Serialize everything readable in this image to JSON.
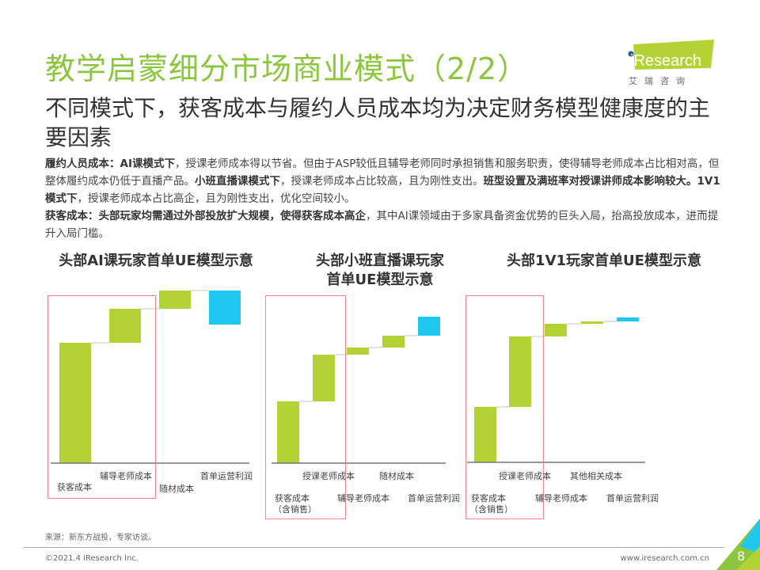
{
  "header": {
    "title": "教学启蒙细分市场商业模式（2/2）",
    "subtitle": "不同模式下，获客成本与履约人员成本均为决定财务模型健康度的主要因素",
    "logo": {
      "brand": "iResearch",
      "cn": "艾 瑞 咨 询"
    }
  },
  "body": {
    "p1": [
      {
        "t": "履约人员成本：AI课模式下",
        "b": true
      },
      {
        "t": "，授课老师成本得以节省。但由于ASP较低且辅导老师同时承担销售和服务职责，使得辅导老师成本占比相对高，但整体履约成本仍低于直播产品。",
        "b": false
      },
      {
        "t": "小班直播课模式下",
        "b": true
      },
      {
        "t": "，授课老师成本占比较高，且为刚性支出。",
        "b": false
      },
      {
        "t": "班型设置及满班率对授课讲师成本影响较大。1V1模式下",
        "b": true
      },
      {
        "t": "，授课老师成本占比高企，且为刚性支出，优化空间较小。",
        "b": false
      }
    ],
    "p2": [
      {
        "t": "获客成本：头部玩家均需通过外部投放扩大规模，使得获客成本高企",
        "b": true
      },
      {
        "t": "，其中AI课领域由于多家具备资金优势的巨头入局，抬高投放成本，进而提升入局门槛。",
        "b": false
      }
    ]
  },
  "colors": {
    "title": "#8cc63f",
    "cost_bar": "#b3d334",
    "profit_bar": "#1fc8f0",
    "highlight_box": "#f0868b"
  },
  "chart_data": [
    {
      "type": "waterfall",
      "title": "头部AI课玩家首单UE模型示意",
      "categories": [
        "获客成本",
        "辅导老师成本",
        "随材成本",
        "首单运营利润"
      ],
      "values": [
        152,
        43,
        23,
        -43
      ],
      "total_bar_last": true,
      "highlighted": [
        "获客成本",
        "辅导老师成本"
      ]
    },
    {
      "type": "waterfall",
      "title": "头部小班直播课玩家",
      "title2": "首单UE模型示意",
      "categories": [
        "获客成本（含销售）",
        "授课老师成本",
        "辅导老师成本",
        "随材成本",
        "首单运营利润"
      ],
      "values": [
        78,
        59,
        9,
        15,
        24
      ],
      "highlighted": [
        "获客成本（含销售）",
        "授课老师成本"
      ]
    },
    {
      "type": "waterfall",
      "title": "头部1V1玩家首单UE模型示意",
      "categories": [
        "获客成本（含销售）",
        "授课老师成本",
        "辅导老师成本",
        "其他相关成本",
        "首单运营利润"
      ],
      "values": [
        70,
        89,
        16,
        3,
        5
      ],
      "highlighted": [
        "获客成本（含销售）",
        "授课老师成本"
      ]
    }
  ],
  "labels": {
    "c1": [
      "获客成本",
      "辅导老师成本",
      "随材成本",
      "首单运营利润"
    ],
    "c2": [
      "获客成本",
      "（含销售）",
      "授课老师成本",
      "辅导老师成本",
      "随材成本",
      "首单运营利润"
    ],
    "c3": [
      "获客成本",
      "（含销售）",
      "授课老师成本",
      "辅导老师成本",
      "其他相关成本",
      "首单运营利润"
    ]
  },
  "footer": {
    "source": "来源：新东方战投，专家访谈。",
    "copyright": "©2021.4 iResearch Inc.",
    "url": "www.iresearch.com.cn",
    "page": "8"
  }
}
